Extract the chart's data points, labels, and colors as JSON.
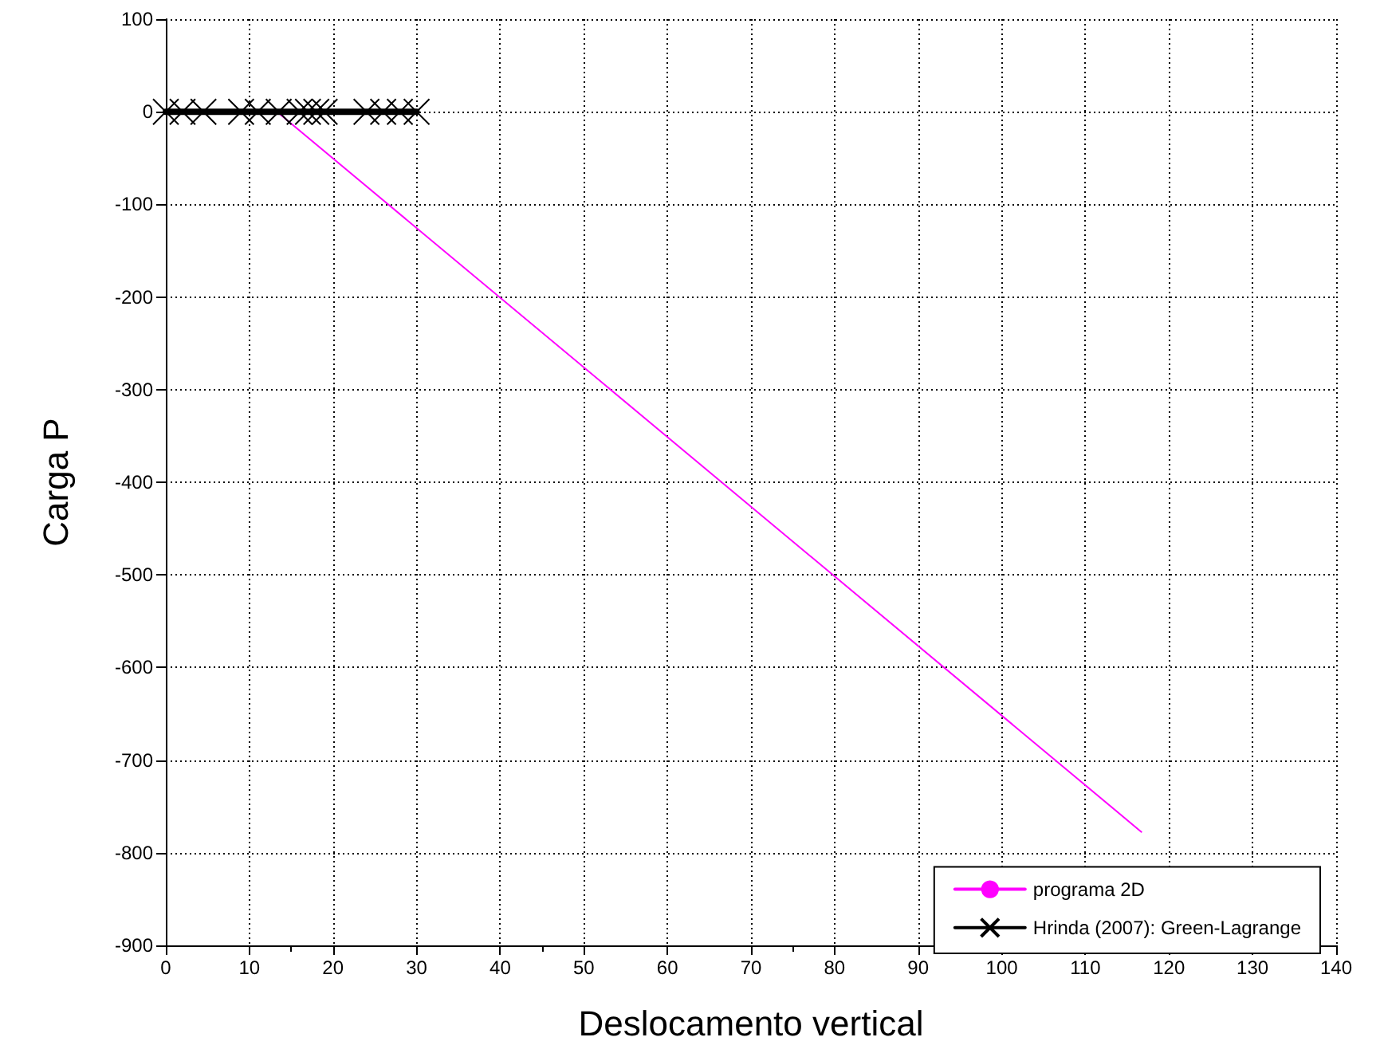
{
  "chart_data": {
    "type": "line",
    "xlabel": "Deslocamento vertical",
    "ylabel": "Carga P",
    "xlim": [
      0,
      140
    ],
    "xticks": [
      0,
      10,
      20,
      30,
      40,
      50,
      60,
      70,
      80,
      90,
      100,
      110,
      120,
      130,
      140
    ],
    "ylim": [
      -900,
      100
    ],
    "yticks": [
      -900,
      -800,
      -700,
      -600,
      -500,
      -400,
      -300,
      -200,
      -100,
      0,
      100
    ],
    "grid": true,
    "legend": "bottom right",
    "series": [
      {
        "name": "programa 2D",
        "color": "#ff00ff",
        "x": [
          0,
          13.3,
          116.7
        ],
        "values": [
          0,
          0,
          -777.5
        ],
        "marker": "none",
        "line_style": "solid"
      },
      {
        "name": "Hrinda (2007): Green-Lagrange",
        "color": "#000000",
        "x": [
          0,
          2,
          4.5,
          9,
          11,
          13.5,
          16,
          17,
          18,
          19,
          24,
          26,
          28,
          30
        ],
        "values": [
          0,
          0,
          0,
          0,
          0,
          0,
          0,
          0,
          0,
          0,
          0,
          0,
          0,
          0
        ],
        "marker": "cross",
        "line_style": "solid"
      }
    ]
  }
}
